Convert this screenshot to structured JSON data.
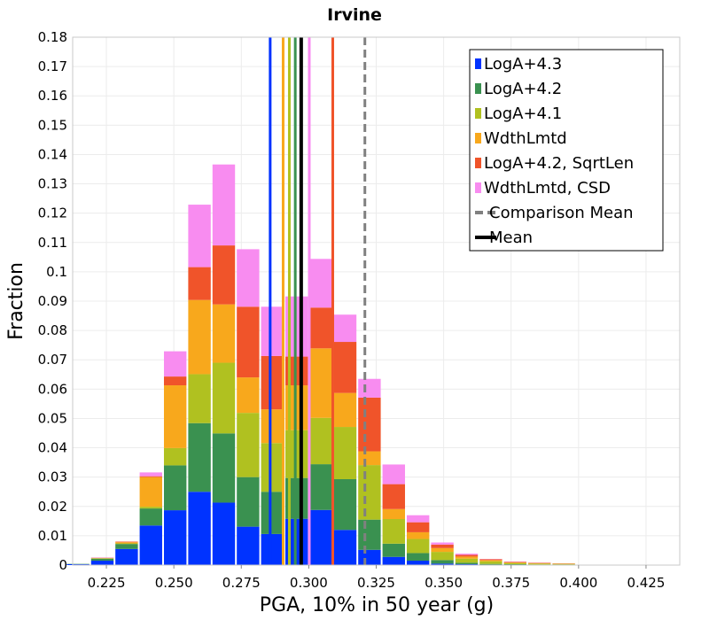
{
  "chart_data": {
    "type": "bar",
    "stacked": true,
    "title": "Irvine",
    "xlabel": "PGA, 10% in 50 year (g)",
    "ylabel": "Fraction",
    "xlim": [
      0.2125,
      0.4375
    ],
    "ylim": [
      0,
      0.18
    ],
    "x_ticks": [
      "0.225",
      "0.250",
      "0.275",
      "0.300",
      "0.325",
      "0.350",
      "0.375",
      "0.400",
      "0.425"
    ],
    "y_ticks": [
      "0",
      "0.01",
      "0.02",
      "0.03",
      "0.04",
      "0.05",
      "0.06",
      "0.07",
      "0.08",
      "0.09",
      "0.1",
      "0.11",
      "0.12",
      "0.13",
      "0.14",
      "0.15",
      "0.16",
      "0.17",
      "0.18"
    ],
    "bin_width": 0.009,
    "bin_centers": [
      0.2145,
      0.2235,
      0.2325,
      0.2415,
      0.2505,
      0.2595,
      0.2685,
      0.2775,
      0.2865,
      0.2955,
      0.3045,
      0.3135,
      0.3225,
      0.3315,
      0.3405,
      0.3495,
      0.3585,
      0.3675,
      0.3765,
      0.3855,
      0.3945,
      0.4035,
      0.4125,
      0.4215,
      0.4305
    ],
    "series": [
      {
        "name": "LogA+4.3",
        "color": "#0033ff",
        "values": [
          0.0003,
          0.0015,
          0.0055,
          0.0135,
          0.0187,
          0.025,
          0.0213,
          0.0131,
          0.0106,
          0.0158,
          0.0188,
          0.012,
          0.0052,
          0.0028,
          0.0015,
          0.0005,
          0.0003,
          0.0001,
          0.0001,
          0.0001,
          0.0001,
          0,
          0,
          0,
          0
        ]
      },
      {
        "name": "LogA+4.2",
        "color": "#3a9150",
        "values": [
          0.0001,
          0.0007,
          0.0017,
          0.0058,
          0.0153,
          0.0234,
          0.0236,
          0.0169,
          0.0144,
          0.0139,
          0.0156,
          0.0173,
          0.0103,
          0.0045,
          0.0026,
          0.0012,
          0.0005,
          0.0003,
          0.0002,
          0.0001,
          0.0001,
          0,
          0,
          0,
          0
        ]
      },
      {
        "name": "LogA+4.1",
        "color": "#b0c120",
        "values": [
          0,
          0.0001,
          0.0002,
          0.0006,
          0.0059,
          0.0167,
          0.0241,
          0.0219,
          0.0166,
          0.0163,
          0.0158,
          0.0178,
          0.0186,
          0.0084,
          0.0048,
          0.0028,
          0.0014,
          0.0009,
          0.0004,
          0.0003,
          0.0002,
          0.0001,
          0,
          0,
          0
        ]
      },
      {
        "name": "WdthLmtd",
        "color": "#f8a81c",
        "values": [
          0,
          0.0001,
          0.0004,
          0.0101,
          0.0214,
          0.0253,
          0.0199,
          0.0121,
          0.0115,
          0.0153,
          0.0237,
          0.0116,
          0.0047,
          0.0034,
          0.0023,
          0.0013,
          0.0007,
          0.0004,
          0.0002,
          0.0002,
          0.0001,
          0,
          0,
          0,
          0
        ]
      },
      {
        "name": "LogA+4.2, SqrtLen",
        "color": "#f0542a",
        "values": [
          0,
          0.0001,
          0.0002,
          0.0003,
          0.003,
          0.0112,
          0.0201,
          0.0241,
          0.0182,
          0.0098,
          0.0139,
          0.0174,
          0.0183,
          0.0085,
          0.0034,
          0.0012,
          0.0006,
          0.0003,
          0.0002,
          0.0001,
          0.0001,
          0,
          0,
          0,
          0
        ]
      },
      {
        "name": "WdthLmtd, CSD",
        "color": "#f88cf0",
        "values": [
          0,
          0.0001,
          0,
          0.0013,
          0.0086,
          0.0213,
          0.0276,
          0.0196,
          0.0168,
          0.0205,
          0.0166,
          0.0093,
          0.0064,
          0.0067,
          0.0024,
          0.0007,
          0.0004,
          0.0001,
          0.0001,
          0.0001,
          0,
          0,
          0,
          0,
          0
        ]
      }
    ],
    "vertical_lines": [
      {
        "label": "LogA+4.3",
        "x": 0.2857,
        "color": "#0033ff",
        "style": "solid"
      },
      {
        "label": "WdthLmtd",
        "x": 0.2905,
        "color": "#f8a81c",
        "style": "solid"
      },
      {
        "label": "LogA+4.1",
        "x": 0.2928,
        "color": "#b0c120",
        "style": "solid"
      },
      {
        "label": "LogA+4.2",
        "x": 0.295,
        "color": "#3a9150",
        "style": "solid"
      },
      {
        "label": "WdthLmtd, CSD",
        "x": 0.3002,
        "color": "#f88cf0",
        "style": "solid"
      },
      {
        "label": "LogA+4.2, SqrtLen",
        "x": 0.3089,
        "color": "#f0542a",
        "style": "solid"
      },
      {
        "label": "Mean",
        "x": 0.2972,
        "color": "#000000",
        "style": "solid"
      },
      {
        "label": "Comparison Mean",
        "x": 0.3208,
        "color": "#808080",
        "style": "dashed"
      }
    ],
    "legend": {
      "position": "top-right",
      "entries": [
        {
          "label": "LogA+4.3",
          "color": "#0033ff",
          "marker": "square"
        },
        {
          "label": "LogA+4.2",
          "color": "#3a9150",
          "marker": "square"
        },
        {
          "label": "LogA+4.1",
          "color": "#b0c120",
          "marker": "square"
        },
        {
          "label": "WdthLmtd",
          "color": "#f8a81c",
          "marker": "square"
        },
        {
          "label": "LogA+4.2, SqrtLen",
          "color": "#f0542a",
          "marker": "square"
        },
        {
          "label": "WdthLmtd, CSD",
          "color": "#f88cf0",
          "marker": "square"
        },
        {
          "label": "Comparison Mean",
          "color": "#808080",
          "marker": "dashed-line"
        },
        {
          "label": "Mean",
          "color": "#000000",
          "marker": "solid-line"
        }
      ]
    },
    "grid": true
  }
}
